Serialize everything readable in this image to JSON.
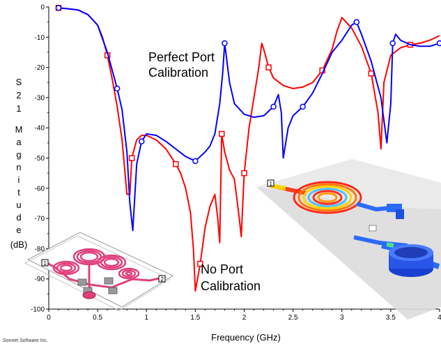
{
  "chart_data": {
    "type": "line",
    "title": "",
    "xlabel": "Frequency (GHz)",
    "ylabel_letters": [
      "S",
      "2",
      "1",
      "M",
      "a",
      "g",
      "n",
      "i",
      "t",
      "u",
      "d",
      "e",
      "(dB)"
    ],
    "xlim": [
      0,
      4
    ],
    "ylim": [
      -100,
      0
    ],
    "x_ticks": [
      "0",
      "0.5",
      "1",
      "1.5",
      "2",
      "2.5",
      "3",
      "3.5",
      "4"
    ],
    "y_ticks": [
      "0",
      "-10",
      "-20",
      "-30",
      "-40",
      "-50",
      "-60",
      "-70",
      "-80",
      "-90",
      "-100"
    ],
    "grid": false,
    "annotations": [
      {
        "lines": [
          "Perfect Port",
          "Calibration"
        ],
        "color": "#000000"
      },
      {
        "lines": [
          "No Port",
          "Calibration"
        ],
        "color": "#000000"
      }
    ],
    "credit": "Sonnet Software Inc.",
    "inset_labels": [
      "1",
      "2",
      "1"
    ],
    "series": [
      {
        "color": "#ff0000",
        "marker": "square",
        "x": [
          0.1,
          0.2,
          0.3,
          0.4,
          0.5,
          0.55,
          0.6,
          0.65,
          0.7,
          0.75,
          0.8,
          0.83,
          0.85,
          0.9,
          0.95,
          1.0,
          1.1,
          1.2,
          1.3,
          1.35,
          1.4,
          1.45,
          1.48,
          1.5,
          1.55,
          1.6,
          1.65,
          1.7,
          1.73,
          1.75,
          1.77,
          1.8,
          1.85,
          1.9,
          1.95,
          1.97,
          2.0,
          2.05,
          2.1,
          2.15,
          2.18,
          2.2,
          2.25,
          2.3,
          2.4,
          2.5,
          2.6,
          2.7,
          2.8,
          2.9,
          2.95,
          3.0,
          3.1,
          3.2,
          3.3,
          3.37,
          3.4,
          3.43,
          3.5,
          3.6,
          3.7,
          3.8,
          3.9,
          4.0
        ],
        "y": [
          -0.3,
          -0.6,
          -1.0,
          -2.5,
          -6.0,
          -10.0,
          -16.0,
          -24.0,
          -33.0,
          -44.0,
          -62.0,
          -62.0,
          -50.0,
          -44.0,
          -42.5,
          -42.5,
          -44.0,
          -47.0,
          -52.0,
          -55.0,
          -60.0,
          -68.0,
          -80.0,
          -94.0,
          -85.0,
          -73.0,
          -66.0,
          -62.0,
          -70.0,
          -78.0,
          -42.0,
          -48.0,
          -54.0,
          -57.0,
          -70.0,
          -76.0,
          -55.0,
          -40.0,
          -30.0,
          -20.0,
          -12.0,
          -14.0,
          -20.0,
          -23.5,
          -26.0,
          -27.0,
          -26.5,
          -25.0,
          -21.0,
          -14.0,
          -8.0,
          -3.5,
          -7.0,
          -13.0,
          -22.0,
          -35.0,
          -47.0,
          -25.0,
          -16.0,
          -13.5,
          -12.5,
          -12.0,
          -11.0,
          -9.5
        ]
      },
      {
        "color": "#0000ff",
        "marker": "circle",
        "x": [
          0.1,
          0.2,
          0.3,
          0.4,
          0.5,
          0.6,
          0.7,
          0.75,
          0.8,
          0.83,
          0.86,
          0.9,
          0.95,
          1.0,
          1.1,
          1.2,
          1.3,
          1.4,
          1.5,
          1.6,
          1.65,
          1.7,
          1.75,
          1.78,
          1.8,
          1.85,
          1.9,
          2.0,
          2.1,
          2.2,
          2.3,
          2.35,
          2.38,
          2.4,
          2.45,
          2.5,
          2.6,
          2.7,
          2.8,
          2.9,
          3.0,
          3.1,
          3.15,
          3.2,
          3.3,
          3.4,
          3.46,
          3.5,
          3.52,
          3.55,
          3.6,
          3.7,
          3.8,
          3.9,
          4.0
        ],
        "y": [
          -0.3,
          -0.6,
          -1.0,
          -2.5,
          -6.0,
          -15.0,
          -27.0,
          -34.0,
          -48.0,
          -65.0,
          -74.0,
          -52.0,
          -44.5,
          -42.0,
          -42.5,
          -44.5,
          -47.0,
          -49.5,
          -51.0,
          -48.0,
          -46.0,
          -42.0,
          -32.0,
          -22.0,
          -12.0,
          -25.0,
          -32.0,
          -35.5,
          -36.5,
          -36.0,
          -33.0,
          -29.0,
          -35.0,
          -50.0,
          -40.0,
          -36.0,
          -33.0,
          -28.5,
          -22.0,
          -15.0,
          -11.0,
          -6.0,
          -5.0,
          -9.0,
          -18.0,
          -30.0,
          -45.0,
          -32.0,
          -12.0,
          -9.0,
          -11.0,
          -12.5,
          -13.0,
          -13.0,
          -12.0
        ]
      }
    ]
  }
}
